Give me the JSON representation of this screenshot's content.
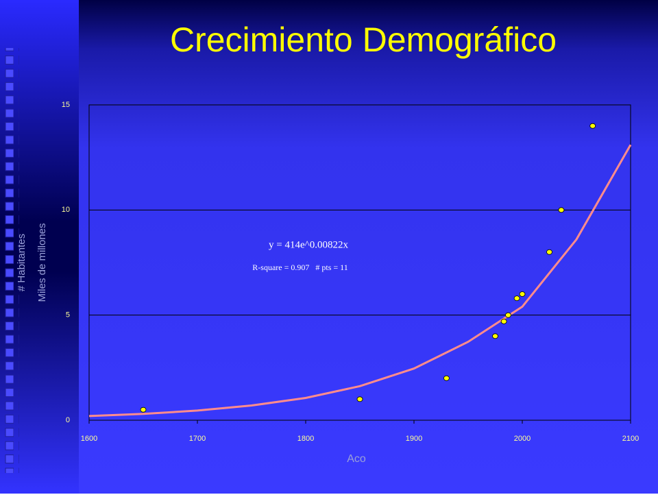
{
  "chart_data": {
    "type": "scatter",
    "title": "Crecimiento Demográfico",
    "xlabel": "Aco",
    "ylabel": [
      "# Habitantes",
      "Miles de millones"
    ],
    "annotations": [
      "y = 414e^0.00822x",
      "R-square = 0.907   # pts = 11"
    ],
    "xlim": [
      1600,
      2100
    ],
    "xticks": [
      1600,
      1700,
      1800,
      1900,
      2000,
      2100
    ],
    "ylim": [
      0,
      15
    ],
    "yticks": [
      0,
      5,
      10,
      15
    ],
    "grid": true,
    "series": [
      {
        "color": "#ffff00",
        "x": [
          1650,
          1850,
          1930,
          1975,
          1983,
          1987,
          1995,
          2000,
          2025,
          2036,
          2065
        ],
        "values": [
          0.5,
          1,
          2,
          4,
          4.7,
          5,
          5.8,
          6,
          8,
          10,
          14
        ]
      }
    ],
    "trend": {
      "color": "#ff8c8c",
      "x": [
        1600,
        1650,
        1700,
        1750,
        1800,
        1850,
        1900,
        1950,
        2000,
        2050,
        2100
      ],
      "values": [
        0.2,
        0.3,
        0.46,
        0.7,
        1.06,
        1.62,
        2.46,
        3.73,
        5.4,
        8.6,
        13.1
      ]
    }
  }
}
